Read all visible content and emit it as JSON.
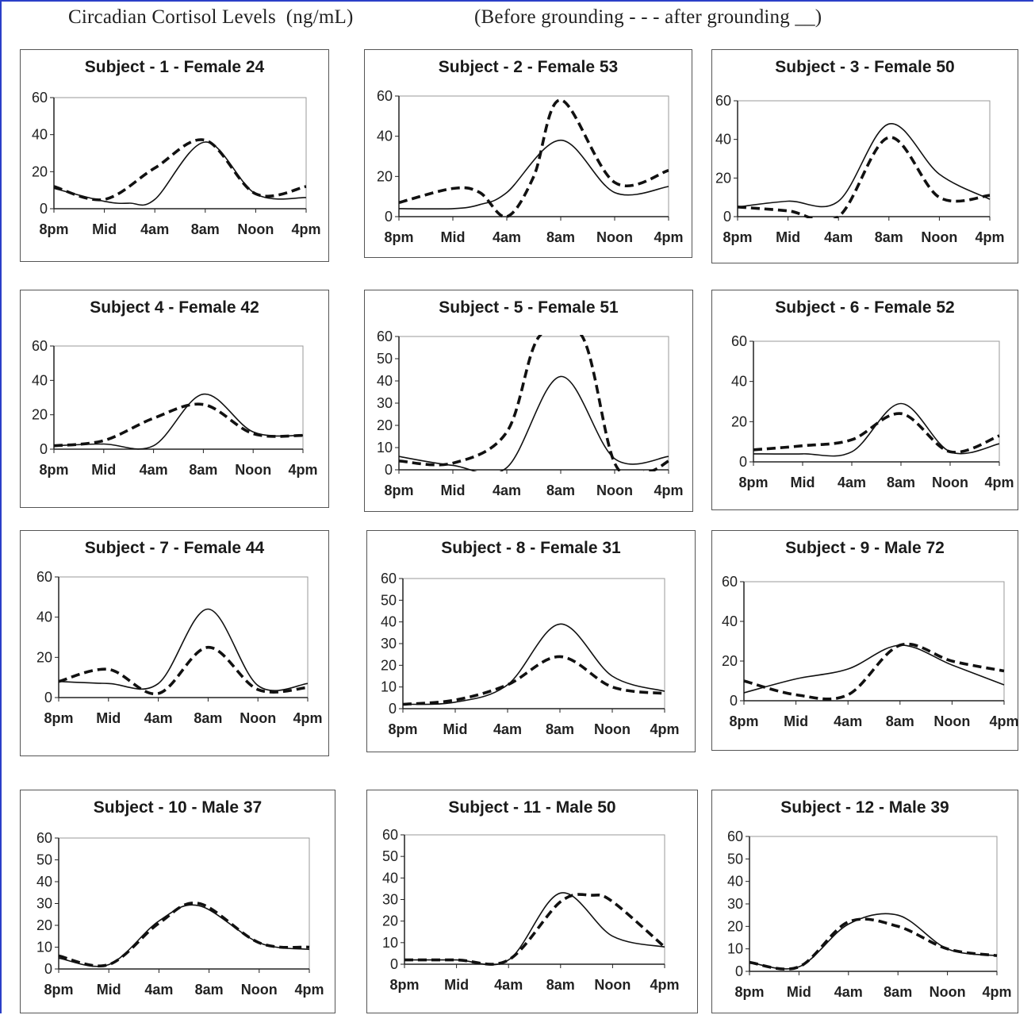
{
  "header": {
    "title": "Circadian Cortisol Levels  (ng/mL)",
    "legend": "(Before grounding - - - after grounding __)"
  },
  "chart_data": [
    {
      "type": "line",
      "title": "Subject - 1 - Female 24",
      "categories": [
        "8pm",
        "Mid",
        "4am",
        "8am",
        "Noon",
        "4pm"
      ],
      "ylim": [
        0,
        60
      ],
      "yticks": [
        0,
        20,
        40,
        60
      ],
      "series": [
        {
          "style": "dashed",
          "x": [
            0,
            1,
            2,
            3,
            4,
            5
          ],
          "y": [
            12,
            5,
            22,
            37,
            8,
            12
          ]
        },
        {
          "style": "solid",
          "x": [
            0,
            1,
            1.5,
            2,
            3,
            4,
            5
          ],
          "y": [
            11,
            4,
            3,
            5,
            36,
            8,
            6
          ]
        }
      ]
    },
    {
      "type": "line",
      "title": "Subject - 2 - Female 53",
      "categories": [
        "8pm",
        "Mid",
        "4am",
        "8am",
        "Noon",
        "4pm"
      ],
      "ylim": [
        0,
        60
      ],
      "yticks": [
        0,
        20,
        40,
        60
      ],
      "series": [
        {
          "style": "dashed",
          "x": [
            0,
            1,
            1.5,
            2,
            2.5,
            3,
            4,
            5
          ],
          "y": [
            7,
            14,
            12,
            0,
            20,
            58,
            17,
            23
          ]
        },
        {
          "style": "solid",
          "x": [
            0,
            1,
            1.5,
            2,
            3,
            4,
            5
          ],
          "y": [
            4,
            4,
            6,
            12,
            38,
            12,
            15
          ]
        }
      ]
    },
    {
      "type": "line",
      "title": "Subject - 3 - Female 50",
      "categories": [
        "8pm",
        "Mid",
        "4am",
        "8am",
        "Noon",
        "4pm"
      ],
      "ylim": [
        0,
        60
      ],
      "yticks": [
        0,
        20,
        40,
        60
      ],
      "series": [
        {
          "style": "dashed",
          "x": [
            0,
            1,
            2,
            3,
            4,
            5
          ],
          "y": [
            5,
            3,
            0,
            41,
            10,
            11
          ]
        },
        {
          "style": "solid",
          "x": [
            0,
            1,
            2,
            3,
            4,
            5
          ],
          "y": [
            5,
            8,
            8,
            48,
            22,
            9
          ]
        }
      ]
    },
    {
      "type": "line",
      "title": "Subject 4 - Female 42",
      "categories": [
        "8pm",
        "Mid",
        "4am",
        "8am",
        "Noon",
        "4pm"
      ],
      "ylim": [
        0,
        60
      ],
      "yticks": [
        0,
        20,
        40,
        60
      ],
      "series": [
        {
          "style": "dashed",
          "x": [
            0,
            1,
            2,
            3,
            4,
            5
          ],
          "y": [
            2,
            5,
            18,
            26,
            9,
            8
          ]
        },
        {
          "style": "solid",
          "x": [
            0,
            1,
            2,
            3,
            4,
            5
          ],
          "y": [
            2,
            3,
            2,
            32,
            10,
            8
          ]
        }
      ]
    },
    {
      "type": "line",
      "title": "Subject - 5 - Female 51",
      "categories": [
        "8pm",
        "Mid",
        "4am",
        "8am",
        "Noon",
        "4pm"
      ],
      "ylim": [
        0,
        60
      ],
      "yticks": [
        0,
        10,
        20,
        30,
        40,
        50,
        60
      ],
      "series": [
        {
          "style": "dashed",
          "x": [
            0,
            1,
            2,
            2.6,
            3.4,
            4,
            4.6,
            5
          ],
          "y": [
            4,
            3,
            17,
            60,
            60,
            3,
            -1,
            4
          ]
        },
        {
          "style": "solid",
          "x": [
            0,
            1,
            2,
            3,
            4,
            5
          ],
          "y": [
            6,
            2,
            1,
            42,
            5,
            6
          ]
        }
      ]
    },
    {
      "type": "line",
      "title": "Subject - 6 - Female 52",
      "categories": [
        "8pm",
        "Mid",
        "4am",
        "8am",
        "Noon",
        "4pm"
      ],
      "ylim": [
        0,
        60
      ],
      "yticks": [
        0,
        20,
        40,
        60
      ],
      "series": [
        {
          "style": "dashed",
          "x": [
            0,
            1,
            2,
            3,
            4,
            5
          ],
          "y": [
            6,
            8,
            11,
            24,
            5,
            13
          ]
        },
        {
          "style": "solid",
          "x": [
            0,
            1,
            2,
            3,
            4,
            5
          ],
          "y": [
            4,
            4,
            5,
            29,
            5,
            9
          ]
        }
      ]
    },
    {
      "type": "line",
      "title": "Subject - 7 - Female 44",
      "categories": [
        "8pm",
        "Mid",
        "4am",
        "8am",
        "Noon",
        "4pm"
      ],
      "ylim": [
        0,
        60
      ],
      "yticks": [
        0,
        20,
        40,
        60
      ],
      "series": [
        {
          "style": "dashed",
          "x": [
            0,
            1,
            2,
            3,
            4,
            5
          ],
          "y": [
            8,
            14,
            2,
            25,
            4,
            5
          ]
        },
        {
          "style": "solid",
          "x": [
            0,
            1,
            2,
            3,
            4,
            5
          ],
          "y": [
            8,
            7,
            7,
            44,
            6,
            7
          ]
        }
      ]
    },
    {
      "type": "line",
      "title": "Subject - 8 - Female 31",
      "categories": [
        "8pm",
        "Mid",
        "4am",
        "8am",
        "Noon",
        "4pm"
      ],
      "ylim": [
        0,
        60
      ],
      "yticks": [
        0,
        10,
        20,
        30,
        40,
        50,
        60
      ],
      "series": [
        {
          "style": "dashed",
          "x": [
            0,
            1,
            2,
            3,
            4,
            5
          ],
          "y": [
            2,
            4,
            11,
            24,
            10,
            7
          ]
        },
        {
          "style": "solid",
          "x": [
            0,
            1,
            2,
            3,
            4,
            5
          ],
          "y": [
            2,
            3,
            11,
            39,
            15,
            8
          ]
        }
      ]
    },
    {
      "type": "line",
      "title": "Subject - 9 - Male 72",
      "categories": [
        "8pm",
        "Mid",
        "4am",
        "8am",
        "Noon",
        "4pm"
      ],
      "ylim": [
        0,
        60
      ],
      "yticks": [
        0,
        20,
        40,
        60
      ],
      "series": [
        {
          "style": "dashed",
          "x": [
            0,
            1,
            2,
            3,
            4,
            5
          ],
          "y": [
            10,
            3,
            3,
            28,
            20,
            15
          ]
        },
        {
          "style": "solid",
          "x": [
            0,
            1,
            2,
            3,
            4,
            5
          ],
          "y": [
            4,
            11,
            16,
            28,
            18,
            8
          ]
        }
      ]
    },
    {
      "type": "line",
      "title": "Subject - 10 - Male 37",
      "categories": [
        "8pm",
        "Mid",
        "4am",
        "8am",
        "Noon",
        "4pm"
      ],
      "ylim": [
        0,
        60
      ],
      "yticks": [
        0,
        10,
        20,
        30,
        40,
        50,
        60
      ],
      "series": [
        {
          "style": "dashed",
          "x": [
            0,
            1,
            2,
            2.8,
            4,
            5
          ],
          "y": [
            6,
            2,
            21,
            30,
            12,
            10
          ]
        },
        {
          "style": "solid",
          "x": [
            0,
            1,
            2,
            2.8,
            4,
            5
          ],
          "y": [
            5,
            2,
            22,
            29,
            12,
            9
          ]
        }
      ]
    },
    {
      "type": "line",
      "title": "Subject - 11 - Male 50",
      "categories": [
        "8pm",
        "Mid",
        "4am",
        "8am",
        "Noon",
        "4pm"
      ],
      "ylim": [
        0,
        60
      ],
      "yticks": [
        0,
        10,
        20,
        30,
        40,
        50,
        60
      ],
      "series": [
        {
          "style": "dashed",
          "x": [
            0,
            1,
            2,
            3,
            3.6,
            4,
            5
          ],
          "y": [
            2,
            2,
            2,
            29,
            32,
            29,
            8
          ]
        },
        {
          "style": "solid",
          "x": [
            0,
            1,
            2,
            3,
            4,
            5
          ],
          "y": [
            2,
            2,
            2,
            33,
            13,
            8
          ]
        }
      ]
    },
    {
      "type": "line",
      "title": "Subject - 12 - Male 39",
      "categories": [
        "8pm",
        "Mid",
        "4am",
        "8am",
        "Noon",
        "4pm"
      ],
      "ylim": [
        0,
        60
      ],
      "yticks": [
        0,
        10,
        20,
        30,
        40,
        50,
        60
      ],
      "series": [
        {
          "style": "dashed",
          "x": [
            0,
            1,
            2,
            3,
            4,
            5
          ],
          "y": [
            4,
            2,
            22,
            20,
            10,
            7
          ]
        },
        {
          "style": "solid",
          "x": [
            0,
            1,
            2,
            3,
            4,
            5
          ],
          "y": [
            4,
            2,
            21,
            25,
            10,
            7
          ]
        }
      ]
    }
  ]
}
